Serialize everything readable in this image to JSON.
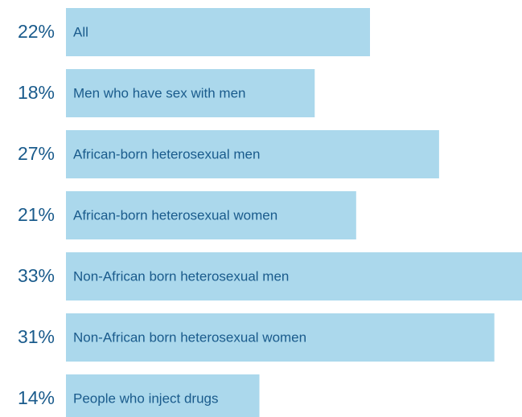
{
  "chart_data": {
    "type": "bar",
    "orientation": "horizontal",
    "categories": [
      "All",
      "Men who have sex with men",
      "African-born heterosexual men",
      "African-born heterosexual women",
      "Non-African born heterosexual men",
      "Non-African born heterosexual women",
      "People who inject drugs"
    ],
    "values": [
      22,
      18,
      27,
      21,
      33,
      31,
      14
    ],
    "value_labels": [
      "22%",
      "18%",
      "27%",
      "21%",
      "33%",
      "31%",
      "14%"
    ],
    "color": "#abd8ec"
  }
}
